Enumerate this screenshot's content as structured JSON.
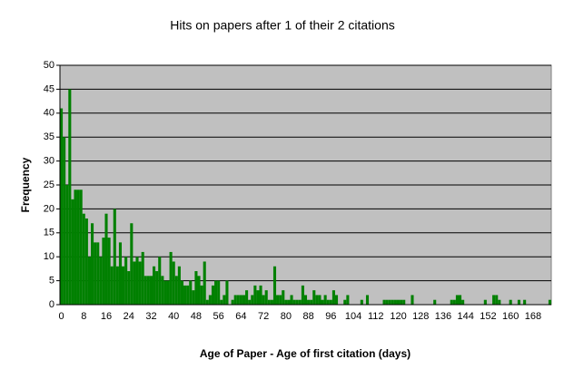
{
  "chart_data": {
    "type": "bar",
    "title": "Hits on papers after 1 of their 2 citations",
    "x_label": "Age of Paper - Age of first citation (days)",
    "y_label": "Frequency",
    "color": "#008000",
    "plot_background": "#c0c0c0",
    "grid": true,
    "ylim": [
      0,
      50
    ],
    "yticks": [
      0,
      5,
      10,
      15,
      20,
      25,
      30,
      35,
      40,
      45,
      50
    ],
    "categories": [
      "0",
      null,
      null,
      null,
      null,
      null,
      null,
      null,
      "8",
      null,
      null,
      null,
      null,
      null,
      null,
      null,
      "16",
      null,
      null,
      null,
      null,
      null,
      null,
      null,
      "24",
      null,
      null,
      null,
      null,
      null,
      null,
      null,
      "32",
      null,
      null,
      null,
      null,
      null,
      null,
      null,
      "40",
      null,
      null,
      null,
      null,
      null,
      null,
      null,
      "48",
      null,
      null,
      null,
      null,
      null,
      null,
      null,
      "56",
      null,
      null,
      null,
      null,
      null,
      null,
      null,
      "64",
      null,
      null,
      null,
      null,
      null,
      null,
      null,
      "72",
      null,
      null,
      null,
      null,
      null,
      null,
      null,
      "80",
      null,
      null,
      null,
      null,
      null,
      null,
      null,
      "88",
      null,
      null,
      null,
      null,
      null,
      null,
      null,
      "96",
      null,
      null,
      null,
      null,
      null,
      null,
      null,
      "104",
      null,
      null,
      null,
      null,
      null,
      null,
      null,
      "112",
      null,
      null,
      null,
      null,
      null,
      null,
      null,
      "120",
      null,
      null,
      null,
      null,
      null,
      null,
      null,
      "128",
      null,
      null,
      null,
      null,
      null,
      null,
      null,
      "136",
      null,
      null,
      null,
      null,
      null,
      null,
      null,
      "144",
      null,
      null,
      null,
      null,
      null,
      null,
      null,
      "152",
      null,
      null,
      null,
      null,
      null,
      null,
      null,
      "160",
      null,
      null,
      null,
      null,
      null,
      null,
      null,
      "168",
      null,
      null,
      null,
      null,
      null,
      null
    ],
    "values": [
      41,
      35,
      25,
      45,
      22,
      24,
      24,
      24,
      19,
      18,
      10,
      17,
      13,
      13,
      10,
      14,
      19,
      14,
      8,
      20,
      8,
      13,
      8,
      10,
      7,
      17,
      9,
      10,
      9,
      11,
      6,
      6,
      6,
      8,
      7,
      10,
      6,
      5,
      5,
      11,
      9,
      6,
      8,
      5,
      4,
      4,
      5,
      3,
      7,
      6,
      4,
      9,
      1,
      2,
      4,
      5,
      5,
      1,
      2,
      5,
      0,
      1,
      2,
      2,
      2,
      2,
      3,
      1,
      2,
      4,
      3,
      4,
      2,
      3,
      1,
      1,
      8,
      2,
      2,
      3,
      1,
      1,
      2,
      1,
      1,
      1,
      4,
      2,
      1,
      1,
      3,
      2,
      2,
      1,
      2,
      1,
      1,
      3,
      2,
      0,
      0,
      1,
      2,
      0,
      0,
      0,
      0,
      1,
      0,
      2,
      0,
      0,
      0,
      0,
      0,
      1,
      1,
      1,
      1,
      1,
      1,
      1,
      1,
      0,
      0,
      2,
      0,
      0,
      0,
      0,
      0,
      0,
      0,
      1,
      0,
      0,
      0,
      0,
      0,
      1,
      1,
      2,
      2,
      1,
      0,
      0,
      0,
      0,
      0,
      0,
      0,
      1,
      0,
      0,
      2,
      2,
      1,
      0,
      0,
      0,
      1,
      0,
      0,
      1,
      0,
      1,
      0,
      0,
      0,
      0,
      0,
      0,
      0,
      0,
      1
    ]
  }
}
